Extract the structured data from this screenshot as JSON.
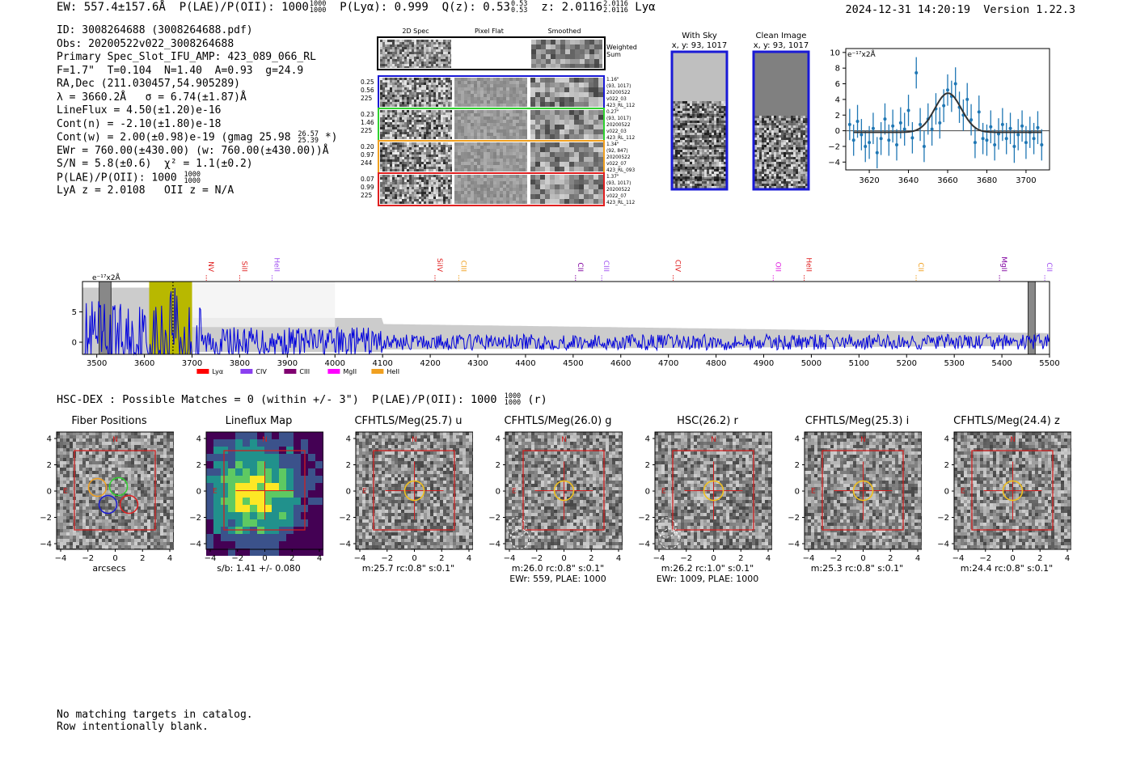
{
  "header": {
    "line_main": "EW: 557.4±157.6Å  P(LAE)/P(OII): 1000",
    "plae_frac_top": "1000",
    "plae_frac_bot": "1000",
    "line_plya": "  P(Lyα): 0.999  Q(z): 0.53",
    "qz_top": "0.53",
    "qz_bot": "0.53",
    "line_z": "  z: 2.0116",
    "z_top": "2.0116",
    "z_bot": "2.0116",
    "line_lya": " Lyα",
    "timestamp": "2024-12-31 14:20:19  Version 1.22.3"
  },
  "info": {
    "id": "ID: 3008264688 (3008264688.pdf)",
    "obs": "Obs: 20200522v022_3008264688",
    "slot": "Primary Spec_Slot_IFU_AMP: 423_089_066_RL",
    "params": "F=1.7\"  T=0.104  N=1.40  A=0.93  g=24.9",
    "radec": "RA,Dec (211.030457,54.905289)",
    "lambda": "λ = 3660.2Å   σ = 6.74(±1.87)Å",
    "lineflux": "LineFlux = 4.50(±1.20)e-16",
    "contn": "Cont(n) = -2.10(±1.80)e-18",
    "contw": "Cont(w) = 2.00(±0.98)e-19 (gmag 25.98",
    "gmag_top": "26.57",
    "gmag_bot": "25.39",
    "contw_end": " *)",
    "ewr": "EWr = 760.00(±430.00) (w: 760.00(±430.00))Å",
    "sn": "S/N = 5.8(±0.6)  χ² = 1.1(±0.2)",
    "plae": "P(LAE)/P(OII): 1000",
    "plae_top": "1000",
    "plae_bot": "1000",
    "lyaz": "LyA z = 2.0108   OII z = N/A"
  },
  "cutouts": {
    "col_titles": [
      "2D Spec",
      "Pixel Flat",
      "Smoothed"
    ],
    "weighted_label": [
      "Weighted",
      "Sum"
    ],
    "rows": [
      {
        "left": [
          "0.25",
          "0.56",
          "225"
        ],
        "right": [
          "1.16\"",
          "(93, 1017)",
          "20200522",
          "v022_03",
          "423_RL_112"
        ],
        "color": "#1a1ad6"
      },
      {
        "left": [
          "0.23",
          "1.46",
          "225"
        ],
        "right": [
          "0.27\"",
          "(93, 1017)",
          "20200522",
          "v022_03",
          "423_RL_112"
        ],
        "color": "#2fd12f"
      },
      {
        "left": [
          "0.20",
          "0.97",
          "244"
        ],
        "right": [
          "1.34\"",
          "(92, 847)",
          "20200522",
          "v022_07",
          "423_RL_093"
        ],
        "color": "#f0a020"
      },
      {
        "left": [
          "0.07",
          "0.99",
          "225"
        ],
        "right": [
          "1.37\"",
          "(93, 1017)",
          "20200522",
          "v022_07",
          "423_RL_112"
        ],
        "color": "#e02020"
      }
    ],
    "sky_title": "With Sky",
    "sky_coords": "x, y: 93, 1017",
    "clean_title": "Clean Image",
    "clean_coords": "x, y: 93, 1017"
  },
  "line_fit": {
    "unit_label": "e⁻¹⁷x2Å",
    "x_ticks": [
      "3620",
      "3640",
      "3660",
      "3680",
      "3700"
    ],
    "y_ticks": [
      "-4",
      "-2",
      "0",
      "2",
      "4",
      "6",
      "8",
      "10"
    ]
  },
  "chart_data": [
    {
      "type": "scatter",
      "title": "",
      "ylabel": "e⁻¹⁷x2Å",
      "xlim": [
        3608,
        3712
      ],
      "ylim": [
        -5,
        10.5
      ],
      "x": [
        3610,
        3612,
        3614,
        3616,
        3618,
        3620,
        3622,
        3624,
        3626,
        3628,
        3630,
        3632,
        3634,
        3636,
        3638,
        3640,
        3642,
        3644,
        3646,
        3648,
        3650,
        3652,
        3654,
        3656,
        3658,
        3660,
        3662,
        3664,
        3666,
        3668,
        3670,
        3672,
        3674,
        3676,
        3678,
        3680,
        3682,
        3684,
        3686,
        3688,
        3690,
        3692,
        3694,
        3696,
        3698,
        3700,
        3702,
        3704,
        3706,
        3708
      ],
      "y": [
        0.8,
        -1.2,
        1.2,
        -0.5,
        -2.0,
        -1.5,
        0.3,
        -2.8,
        -1.0,
        1.5,
        -1.2,
        0.6,
        -1.8,
        1.0,
        0.2,
        2.6,
        -0.9,
        7.4,
        0.8,
        -2.0,
        1.5,
        0.2,
        2.8,
        1.0,
        3.2,
        5.2,
        4.4,
        6.0,
        3.0,
        2.0,
        4.0,
        1.4,
        -1.5,
        2.4,
        -1.0,
        -1.2,
        0.5,
        -1.8,
        -0.4,
        0.8,
        -1.0,
        0.3,
        -2.0,
        -0.5,
        0.6,
        -1.5,
        -0.2,
        -1.0,
        0.4,
        -1.8
      ],
      "yerr": [
        2.0,
        2.0,
        2.1,
        2.0,
        2.0,
        2.1,
        2.0,
        2.0,
        2.1,
        2.0,
        2.0,
        2.1,
        2.0,
        2.0,
        2.1,
        2.0,
        2.0,
        2.0,
        2.1,
        2.0,
        2.0,
        2.1,
        2.0,
        2.0,
        2.1,
        2.0,
        2.0,
        2.1,
        2.0,
        2.0,
        2.1,
        2.0,
        2.0,
        2.1,
        2.0,
        2.0,
        2.1,
        2.0,
        2.0,
        2.1,
        2.0,
        2.0,
        2.1,
        2.0,
        2.0,
        2.1,
        2.0,
        2.0,
        2.1,
        2.0
      ],
      "fit": {
        "center": 3660.2,
        "sigma": 6.74,
        "amplitude": 5.0,
        "continuum": -0.2
      },
      "colors": {
        "points": "#1f77b4",
        "fit": "#333333"
      }
    },
    {
      "type": "line",
      "title": "",
      "ylabel": "e⁻¹⁷x2Å",
      "xlim": [
        3470,
        5500
      ],
      "ylim": [
        -2,
        10
      ],
      "x_ticks": [
        3500,
        3600,
        3700,
        3800,
        3900,
        4000,
        4100,
        4200,
        4300,
        4400,
        4500,
        4600,
        4700,
        4800,
        4900,
        5000,
        5100,
        5200,
        5300,
        5400,
        5500
      ],
      "y_ticks": [
        0,
        5
      ],
      "highlight": [
        3610,
        3700
      ],
      "line_marker": 3660,
      "masked": [
        [
          3505,
          3530
        ],
        [
          5455,
          5470
        ]
      ],
      "line_labels": [
        {
          "name": "NV",
          "wave": 3730,
          "color": "#e02020"
        },
        {
          "name": "SiII",
          "wave": 3800,
          "color": "#e02020"
        },
        {
          "name": "HeII",
          "wave": 3868,
          "color": "#a050f0"
        },
        {
          "name": "SiIV",
          "wave": 4210,
          "color": "#e02020"
        },
        {
          "name": "CIII",
          "wave": 4260,
          "color": "#f0a020"
        },
        {
          "name": "CII",
          "wave": 4505,
          "color": "#8000a0"
        },
        {
          "name": "CIII",
          "wave": 4560,
          "color": "#a050f0"
        },
        {
          "name": "CIV",
          "wave": 4710,
          "color": "#e02020"
        },
        {
          "name": "OII",
          "wave": 4920,
          "color": "#e020e0"
        },
        {
          "name": "HeII",
          "wave": 4985,
          "color": "#e02020"
        },
        {
          "name": "CII",
          "wave": 5220,
          "color": "#f0a020"
        },
        {
          "name": "MgII",
          "wave": 5395,
          "color": "#8000a0"
        },
        {
          "name": "CII",
          "wave": 5490,
          "color": "#a050f0"
        }
      ],
      "legend": [
        {
          "name": "Lyα",
          "color": "#ff0000"
        },
        {
          "name": "CIV",
          "color": "#8a3ff0"
        },
        {
          "name": "CIII",
          "color": "#800070"
        },
        {
          "name": "MgII",
          "color": "#ff00ff"
        },
        {
          "name": "HeII",
          "color": "#f0a020"
        }
      ],
      "colors": {
        "flux": "#0000dd",
        "error_band": "#bbbbbb",
        "highlight": "#b8b800"
      }
    }
  ],
  "hsc": {
    "line": "HSC-DEX : Possible Matches = 0 (within +/- 3\")  P(LAE)/P(OII): 1000",
    "frac_top": "1000",
    "frac_bot": "1000",
    "suffix": " (r)",
    "panels": [
      {
        "title": "Fiber Positions",
        "sub1": "arcsecs",
        "sub2": "",
        "kind": "fibers"
      },
      {
        "title": "Lineflux Map",
        "sub1": "s/b: 1.41 +/- 0.080",
        "sub2": "",
        "kind": "map"
      },
      {
        "title": "CFHTLS/Meg(25.7) u",
        "sub1": "m:25.7 rc:0.8\"  s:0.1\"",
        "sub2": "",
        "kind": "img"
      },
      {
        "title": "CFHTLS/Meg(26.0) g",
        "sub1": "m:26.0 rc:0.8\"  s:0.1\"",
        "sub2": "EWr: 559, PLAE: 1000",
        "kind": "img2"
      },
      {
        "title": "HSC(26.2) r",
        "sub1": "m:26.2 rc:1.0\"  s:0.1\"",
        "sub2": "EWr: 1009, PLAE: 1000",
        "kind": "img2"
      },
      {
        "title": "CFHTLS/Meg(25.3) i",
        "sub1": "m:25.3 rc:0.8\"  s:0.1\"",
        "sub2": "",
        "kind": "img"
      },
      {
        "title": "CFHTLS/Meg(24.4) z",
        "sub1": "m:24.4 rc:0.8\"  s:0.1\"",
        "sub2": "",
        "kind": "img"
      }
    ],
    "axis_ticks": [
      "−4",
      "−2",
      "0",
      "2",
      "4"
    ],
    "north": "N",
    "east": "E"
  },
  "footer": {
    "line1": "No matching targets in catalog.",
    "line2": "Row intentionally blank."
  }
}
